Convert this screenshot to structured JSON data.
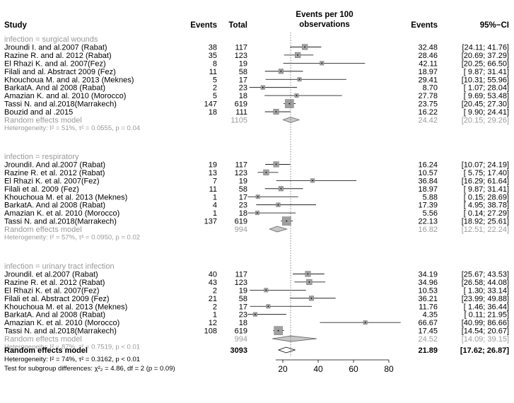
{
  "chart_data": {
    "type": "forest",
    "headers": {
      "study": "Study",
      "events": "Events",
      "total": "Total",
      "plot_title_1": "Events per 100",
      "plot_title_2": "observations",
      "estimate_events": "Events",
      "ci": "95%−CI"
    },
    "axis": {
      "min": 0,
      "max": 80,
      "ticks": [
        "20",
        "40",
        "60",
        "80"
      ],
      "tick_values": [
        20,
        40,
        60,
        80
      ],
      "reference_line": 24.42
    },
    "subgroups": [
      {
        "title": "infection = surgical wounds",
        "studies": [
          {
            "study": "Jroundi I. and  al.2007 (Rabat)",
            "events": "38",
            "total": "117",
            "est": "32.48",
            "ci": "[24.11; 41.76]",
            "est_v": 32.48,
            "lo": 24.11,
            "hi": 41.76
          },
          {
            "study": "Razine R. and al. 2012 (Rabat)",
            "events": "35",
            "total": "123",
            "est": "28.46",
            "ci": "[20.69; 37.29]",
            "est_v": 28.46,
            "lo": 20.69,
            "hi": 37.29
          },
          {
            "study": "El Rhazi K. and al. 2007(Fez)",
            "events": "8",
            "total": "19",
            "est": "42.11",
            "ci": "[20.25; 66.50]",
            "est_v": 42.11,
            "lo": 20.25,
            "hi": 66.5
          },
          {
            "study": "Filali and al. Abstract 2009 (Fez)",
            "events": "11",
            "total": "58",
            "est": "18.97",
            "ci": "[ 9.87; 31.41]",
            "est_v": 18.97,
            "lo": 9.87,
            "hi": 31.41
          },
          {
            "study": "Khouchoua M. and al. 2013 (Meknes)",
            "events": "5",
            "total": "17",
            "est": "29.41",
            "ci": "[10.31; 55.96]",
            "est_v": 29.41,
            "lo": 10.31,
            "hi": 55.96
          },
          {
            "study": "BarkatA. And al 2008 (Rabat)",
            "events": "2",
            "total": "23",
            "est": "8.70",
            "ci": "[ 1.07; 28.04]",
            "est_v": 8.7,
            "lo": 1.07,
            "hi": 28.04
          },
          {
            "study": "Amazian K. and al. 2010 (Morocco)",
            "events": "5",
            "total": "18",
            "est": "27.78",
            "ci": "[ 9.69; 53.48]",
            "est_v": 27.78,
            "lo": 9.69,
            "hi": 53.48
          },
          {
            "study": "Tassi N. and al.2018(Marrakech)",
            "events": "147",
            "total": "619",
            "est": "23.75",
            "ci": "[20.45; 27.30]",
            "est_v": 23.75,
            "lo": 20.45,
            "hi": 27.3
          },
          {
            "study": "Bouzid and al .2015",
            "events": "18",
            "total": "111",
            "est": "16.22",
            "ci": "[ 9.90; 24.41]",
            "est_v": 16.22,
            "lo": 9.9,
            "hi": 24.41
          }
        ],
        "re_label": "Random effects model",
        "re_total": "1105",
        "re_est": "24.42",
        "re_ci": "[20.15; 29.26]",
        "re_v": 24.42,
        "re_lo": 20.15,
        "re_hi": 29.26,
        "heterogeneity": "Heterogeneity: I² = 51%, τ² = 0.0555, p = 0.04"
      },
      {
        "title": "infection = respiratory",
        "studies": [
          {
            "study": "JroundiI. And  al.2007 (Rabat)",
            "events": "19",
            "total": "117",
            "est": "16.24",
            "ci": "[10.07; 24.19]",
            "est_v": 16.24,
            "lo": 10.07,
            "hi": 24.19
          },
          {
            "study": "Razine R. et al. 2012 (Rabat)",
            "events": "13",
            "total": "123",
            "est": "10.57",
            "ci": "[ 5.75; 17.40]",
            "est_v": 10.57,
            "lo": 5.75,
            "hi": 17.4
          },
          {
            "study": "El Rhazi K. et al. 2007(Fez)",
            "events": "7",
            "total": "19",
            "est": "36.84",
            "ci": "[16.29; 61.64]",
            "est_v": 36.84,
            "lo": 16.29,
            "hi": 61.64
          },
          {
            "study": "Filali et al. 2009 (Fez)",
            "events": "11",
            "total": "58",
            "est": "18.97",
            "ci": "[ 9.87; 31.41]",
            "est_v": 18.97,
            "lo": 9.87,
            "hi": 31.41
          },
          {
            "study": "Khouchoua M. et al. 2013 (Meknes)",
            "events": "1",
            "total": "17",
            "est": "5.88",
            "ci": "[ 0.15; 28.69]",
            "est_v": 5.88,
            "lo": 0.15,
            "hi": 28.69
          },
          {
            "study": "BarkatA. And al 2008 (Rabat)",
            "events": "4",
            "total": "23",
            "est": "17.39",
            "ci": "[ 4.95; 38.78]",
            "est_v": 17.39,
            "lo": 4.95,
            "hi": 38.78
          },
          {
            "study": "Amazian K. et al. 2010 (Morocco)",
            "events": "1",
            "total": "18",
            "est": "5.56",
            "ci": "[ 0.14; 27.29]",
            "est_v": 5.56,
            "lo": 0.14,
            "hi": 27.29
          },
          {
            "study": "Tassi N. and al.2018(Marrakech)",
            "events": "137",
            "total": "619",
            "est": "22.13",
            "ci": "[18.92; 25.61]",
            "est_v": 22.13,
            "lo": 18.92,
            "hi": 25.61
          }
        ],
        "re_label": "Random effects model",
        "re_total": "994",
        "re_est": "16.82",
        "re_ci": "[12.51; 22.24]",
        "re_v": 16.82,
        "re_lo": 12.51,
        "re_hi": 22.24,
        "heterogeneity": "Heterogeneity: I² = 57%, τ² = 0.0950, p = 0.02"
      },
      {
        "title": "infection = urinary tract infection",
        "studies": [
          {
            "study": "Jroundil. et al.2007 (Rabat)",
            "events": "40",
            "total": "117",
            "est": "34.19",
            "ci": "[25.67; 43.53]",
            "est_v": 34.19,
            "lo": 25.67,
            "hi": 43.53
          },
          {
            "study": "Razine R. et al. 2012 (Rabat)",
            "events": "43",
            "total": "123",
            "est": "34.96",
            "ci": "[26.58; 44.08]",
            "est_v": 34.96,
            "lo": 26.58,
            "hi": 44.08
          },
          {
            "study": "El Rhazi K. et al. 2007(Fez)",
            "events": "2",
            "total": "19",
            "est": "10.53",
            "ci": "[ 1.30; 33.14]",
            "est_v": 10.53,
            "lo": 1.3,
            "hi": 33.14
          },
          {
            "study": "Filali et al. Abstract 2009 (Fez)",
            "events": "21",
            "total": "58",
            "est": "36.21",
            "ci": "[23.99; 49.88]",
            "est_v": 36.21,
            "lo": 23.99,
            "hi": 49.88
          },
          {
            "study": "Khouchoua M. et al. 2013 (Meknes)",
            "events": "2",
            "total": "17",
            "est": "11.76",
            "ci": "[ 1.46; 36.44]",
            "est_v": 11.76,
            "lo": 1.46,
            "hi": 36.44
          },
          {
            "study": "BarkatA. And al 2008 (Rabat)",
            "events": "1",
            "total": "23",
            "est": "4.35",
            "ci": "[ 0.11; 21.95]",
            "est_v": 4.35,
            "lo": 0.11,
            "hi": 21.95
          },
          {
            "study": "Amazian K. et al. 2010 (Morocco)",
            "events": "12",
            "total": "18",
            "est": "66.67",
            "ci": "[40.99; 86.66]",
            "est_v": 66.67,
            "lo": 40.99,
            "hi": 86.66
          },
          {
            "study": "Tassi N. and al.2018(Marrakech)",
            "events": "108",
            "total": "619",
            "est": "17.45",
            "ci": "[14.54; 20.67]",
            "est_v": 17.45,
            "lo": 14.54,
            "hi": 20.67
          }
        ],
        "re_label": "Random effects model",
        "re_total": "994",
        "re_est": "24.52",
        "re_ci": "[14.09; 39.15]",
        "re_v": 24.52,
        "re_lo": 14.09,
        "re_hi": 39.15,
        "heterogeneity": "Heterogeneity: I² = 87%, τ² = 0.7519, p < 0.01"
      }
    ],
    "overall": {
      "label": "Random effects model",
      "total": "3093",
      "est": "21.89",
      "ci": "[17.62; 26.87]",
      "v": 21.89,
      "lo": 17.62,
      "hi": 26.87,
      "heterogeneity": "Heterogeneity: I² = 74%, τ² = 0.3162, p < 0.01",
      "subgroup_test": "Test for subgroup differences: χ²₂ = 4.86, df = 2 (p = 0.09)"
    }
  }
}
